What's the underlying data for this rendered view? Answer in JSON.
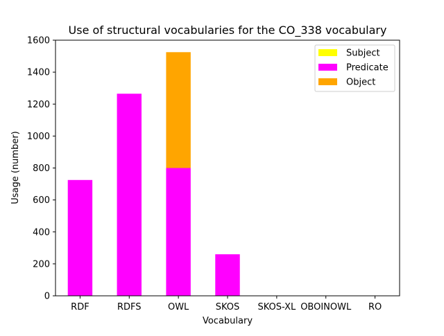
{
  "chart_data": {
    "type": "bar",
    "stacked": true,
    "title": "Use of structural vocabularies for the CO_338 vocabulary",
    "xlabel": "Vocabulary",
    "ylabel": "Usage (number)",
    "categories": [
      "RDF",
      "RDFS",
      "OWL",
      "SKOS",
      "SKOS-XL",
      "OBOINOWL",
      "RO"
    ],
    "ylim": [
      0,
      1600
    ],
    "yticks": [
      0,
      200,
      400,
      600,
      800,
      1000,
      1200,
      1400,
      1600
    ],
    "grid": false,
    "legend_position": "top-right",
    "series": [
      {
        "name": "Subject",
        "color": "#ffff00",
        "values": [
          0,
          0,
          0,
          0,
          0,
          0,
          0
        ]
      },
      {
        "name": "Predicate",
        "color": "#ff00ff",
        "values": [
          725,
          1265,
          800,
          260,
          0,
          0,
          0
        ]
      },
      {
        "name": "Object",
        "color": "#ffa500",
        "values": [
          0,
          0,
          725,
          0,
          0,
          0,
          0
        ]
      }
    ]
  }
}
